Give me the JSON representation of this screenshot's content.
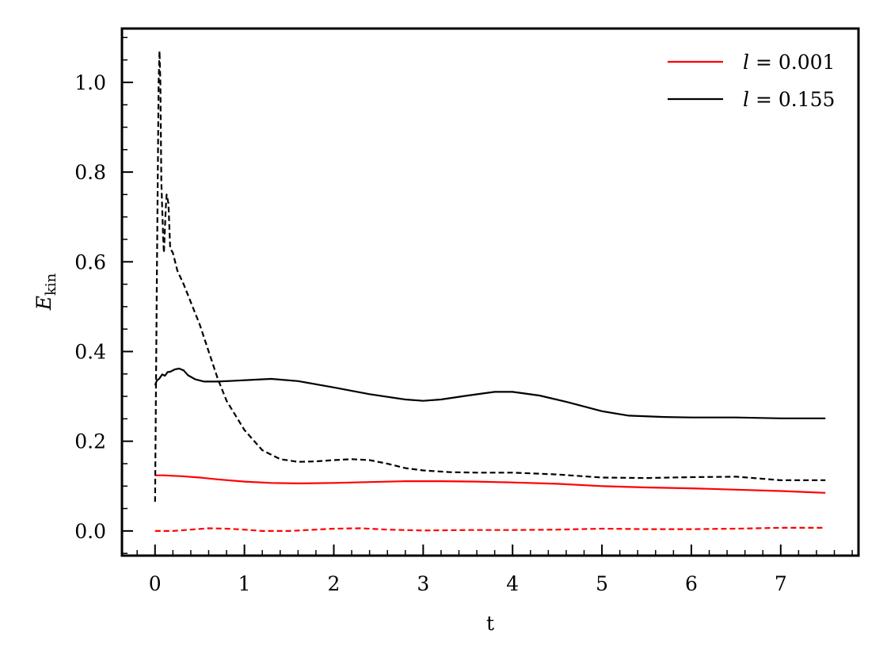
{
  "chart_data": {
    "type": "line",
    "xlabel": "t",
    "ylabel": "E",
    "ylabel_sub": "kin",
    "xlim": [
      -0.37,
      7.87
    ],
    "ylim": [
      -0.055,
      1.12
    ],
    "x_ticks": [
      0,
      1,
      2,
      3,
      4,
      5,
      6,
      7
    ],
    "x_tick_labels": [
      "0",
      "1",
      "2",
      "3",
      "4",
      "5",
      "6",
      "7"
    ],
    "y_ticks": [
      0.0,
      0.2,
      0.4,
      0.6,
      0.8,
      1.0
    ],
    "y_tick_labels": [
      "0.0",
      "0.2",
      "0.4",
      "0.6",
      "0.8",
      "1.0"
    ],
    "grid": false,
    "legend_position": "top-right",
    "legend": [
      {
        "italic": "l",
        "text": " = 0.001",
        "color": "#ff0000"
      },
      {
        "italic": "l",
        "text": " = 0.155",
        "color": "#000000"
      }
    ],
    "series": [
      {
        "color": "#ff0000",
        "dash": "solid",
        "x": [
          0.0,
          0.1,
          0.2,
          0.3,
          0.5,
          0.7,
          1.0,
          1.3,
          1.6,
          2.0,
          2.4,
          2.8,
          3.0,
          3.2,
          3.6,
          4.0,
          4.5,
          5.0,
          5.5,
          6.0,
          6.5,
          7.0,
          7.5
        ],
        "y": [
          0.124,
          0.124,
          0.123,
          0.122,
          0.119,
          0.115,
          0.11,
          0.107,
          0.106,
          0.107,
          0.109,
          0.111,
          0.111,
          0.111,
          0.11,
          0.108,
          0.105,
          0.1,
          0.097,
          0.095,
          0.092,
          0.089,
          0.085
        ]
      },
      {
        "color": "#ff0000",
        "dash": "dashed",
        "x": [
          0.0,
          0.2,
          0.4,
          0.6,
          0.8,
          1.0,
          1.2,
          1.5,
          1.8,
          2.0,
          2.3,
          2.6,
          3.0,
          3.5,
          4.0,
          4.5,
          5.0,
          5.5,
          6.0,
          6.5,
          7.0,
          7.5
        ],
        "y": [
          0.0,
          0.0,
          0.003,
          0.006,
          0.005,
          0.003,
          0.0,
          0.0,
          0.003,
          0.005,
          0.006,
          0.003,
          0.001,
          0.002,
          0.002,
          0.003,
          0.005,
          0.004,
          0.004,
          0.005,
          0.007,
          0.007
        ]
      },
      {
        "color": "#000000",
        "dash": "solid",
        "x": [
          0.0,
          0.02,
          0.05,
          0.08,
          0.11,
          0.14,
          0.17,
          0.22,
          0.27,
          0.32,
          0.37,
          0.45,
          0.55,
          0.7,
          0.9,
          1.1,
          1.3,
          1.6,
          2.0,
          2.4,
          2.8,
          3.0,
          3.2,
          3.5,
          3.8,
          4.0,
          4.3,
          4.6,
          5.0,
          5.3,
          5.7,
          6.0,
          6.5,
          7.0,
          7.5
        ],
        "y": [
          0.325,
          0.335,
          0.34,
          0.349,
          0.346,
          0.354,
          0.355,
          0.36,
          0.362,
          0.358,
          0.347,
          0.338,
          0.333,
          0.333,
          0.335,
          0.337,
          0.339,
          0.334,
          0.32,
          0.305,
          0.293,
          0.29,
          0.293,
          0.302,
          0.31,
          0.31,
          0.302,
          0.288,
          0.267,
          0.257,
          0.254,
          0.253,
          0.253,
          0.251,
          0.251
        ]
      },
      {
        "color": "#000000",
        "dash": "dashed",
        "x": [
          0.0,
          0.02,
          0.04,
          0.05,
          0.06,
          0.07,
          0.09,
          0.1,
          0.12,
          0.13,
          0.15,
          0.17,
          0.2,
          0.25,
          0.32,
          0.4,
          0.5,
          0.6,
          0.7,
          0.8,
          1.0,
          1.2,
          1.4,
          1.6,
          1.8,
          2.0,
          2.2,
          2.4,
          2.6,
          2.8,
          3.0,
          3.3,
          3.6,
          4.0,
          4.5,
          5.0,
          5.5,
          6.0,
          6.5,
          7.0,
          7.5
        ],
        "y": [
          0.065,
          0.55,
          1.0,
          1.07,
          1.0,
          0.78,
          0.66,
          0.62,
          0.72,
          0.75,
          0.73,
          0.63,
          0.62,
          0.58,
          0.55,
          0.51,
          0.46,
          0.4,
          0.34,
          0.29,
          0.225,
          0.18,
          0.16,
          0.154,
          0.155,
          0.158,
          0.16,
          0.158,
          0.15,
          0.14,
          0.135,
          0.131,
          0.13,
          0.13,
          0.126,
          0.119,
          0.118,
          0.12,
          0.121,
          0.113,
          0.113
        ]
      }
    ]
  }
}
